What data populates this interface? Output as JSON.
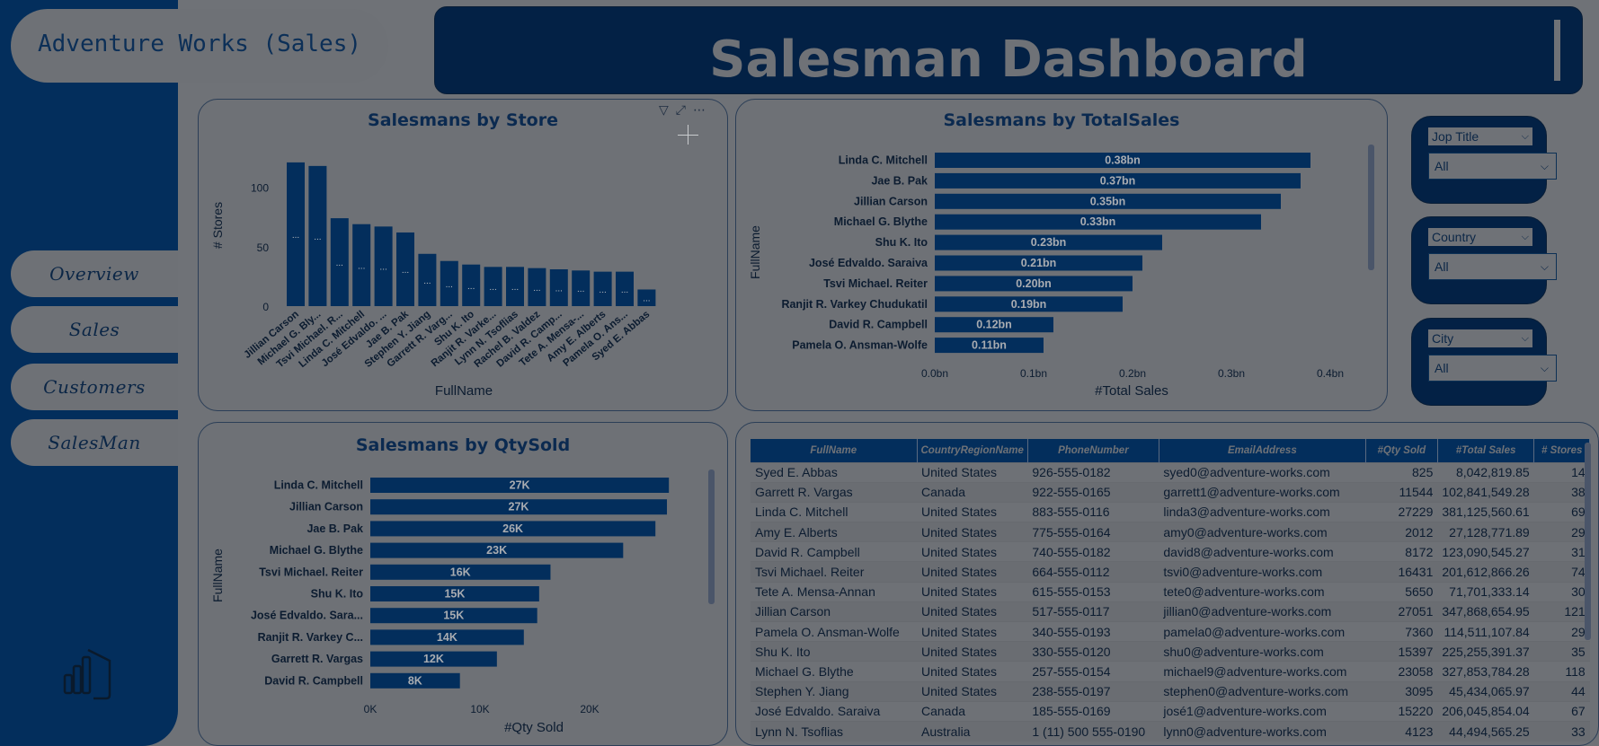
{
  "app_title": "Adventure Works (Sales)",
  "header_title": "Salesman Dashboard",
  "nav": [
    "Overview",
    "Sales",
    "Customers",
    "SalesMan"
  ],
  "colors": {
    "nav_bg": "#032e5c",
    "bar": "#032e5c",
    "card_bg": "#6e7176"
  },
  "slicers": [
    {
      "label": "Jop Title",
      "value": "All"
    },
    {
      "label": "Country",
      "value": "All"
    },
    {
      "label": "City",
      "value": "All"
    }
  ],
  "visual_icons": [
    "filter-icon",
    "focus-mode-icon",
    "more-options-icon"
  ],
  "chart_data": [
    {
      "type": "bar",
      "title": "Salesmans by Store",
      "xlabel": "FullName",
      "ylabel": "# Stores",
      "ylim": [
        0,
        130
      ],
      "y_ticks": [
        "0",
        "50",
        "100"
      ],
      "categories": [
        "Jillian Carson",
        "Michael G. Bly...",
        "Tsvi Michael. R...",
        "Linda C. Mitchell",
        "José Edvaldo. ...",
        "Jae B. Pak",
        "Stephen Y. Jiang",
        "Garrett R. Varg...",
        "Shu K. Ito",
        "Ranjit R. Varke...",
        "Lynn N. Tsoflias",
        "Rachel B. Valdez",
        "David R. Camp...",
        "Tete A. Mensa-...",
        "Amy E. Alberts",
        "Pamela O. Ans...",
        "Syed E. Abbas"
      ],
      "values": [
        121,
        118,
        74,
        69,
        67,
        62,
        44,
        38,
        35,
        33,
        33,
        32,
        31,
        30,
        29,
        29,
        14
      ],
      "bar_label": "..."
    },
    {
      "type": "bar",
      "orientation": "horizontal",
      "title": "Salesmans by TotalSales",
      "xlabel": "#Total Sales",
      "ylabel": "FullName",
      "xlim": [
        0,
        0.4
      ],
      "x_ticks": [
        "0.0bn",
        "0.1bn",
        "0.2bn",
        "0.3bn",
        "0.4bn"
      ],
      "categories": [
        "Linda C. Mitchell",
        "Jae B. Pak",
        "Jillian Carson",
        "Michael G. Blythe",
        "Shu K. Ito",
        "José Edvaldo. Saraiva",
        "Tsvi Michael. Reiter",
        "Ranjit R. Varkey Chudukatil",
        "David R. Campbell",
        "Pamela O. Ansman-Wolfe"
      ],
      "values": [
        0.38,
        0.37,
        0.35,
        0.33,
        0.23,
        0.21,
        0.2,
        0.19,
        0.12,
        0.11
      ],
      "labels": [
        "0.38bn",
        "0.37bn",
        "0.35bn",
        "0.33bn",
        "0.23bn",
        "0.21bn",
        "0.20bn",
        "0.19bn",
        "0.12bn",
        "0.11bn"
      ]
    },
    {
      "type": "bar",
      "orientation": "horizontal",
      "title": "Salesmans by QtySold",
      "xlabel": "#Qty Sold",
      "ylabel": "FullName",
      "xlim": [
        0,
        30000
      ],
      "x_ticks": [
        "0K",
        "10K",
        "20K"
      ],
      "categories": [
        "Linda C. Mitchell",
        "Jillian Carson",
        "Jae B. Pak",
        "Michael G. Blythe",
        "Tsvi Michael. Reiter",
        "Shu K. Ito",
        "José Edvaldo. Sara...",
        "Ranjit R. Varkey C...",
        "Garrett R. Vargas",
        "David R. Campbell"
      ],
      "values": [
        27229,
        27051,
        26000,
        23058,
        16431,
        15397,
        15220,
        14000,
        11544,
        8172
      ],
      "labels": [
        "27K",
        "27K",
        "26K",
        "23K",
        "16K",
        "15K",
        "15K",
        "14K",
        "12K",
        "8K"
      ]
    }
  ],
  "table": {
    "columns": [
      "FullName",
      "CountryRegionName",
      "PhoneNumber",
      "EmailAddress",
      "#Qty Sold",
      "#Total Sales",
      "# Stores"
    ],
    "rows": [
      [
        "Syed E. Abbas",
        "United States",
        "926-555-0182",
        "syed0@adventure-works.com",
        "825",
        "8,042,819.85",
        "14"
      ],
      [
        "Garrett R. Vargas",
        "Canada",
        "922-555-0165",
        "garrett1@adventure-works.com",
        "11544",
        "102,841,549.28",
        "38"
      ],
      [
        "Linda C. Mitchell",
        "United States",
        "883-555-0116",
        "linda3@adventure-works.com",
        "27229",
        "381,125,560.61",
        "69"
      ],
      [
        "Amy E. Alberts",
        "United States",
        "775-555-0164",
        "amy0@adventure-works.com",
        "2012",
        "27,128,771.89",
        "29"
      ],
      [
        "David R. Campbell",
        "United States",
        "740-555-0182",
        "david8@adventure-works.com",
        "8172",
        "123,090,545.27",
        "31"
      ],
      [
        "Tsvi Michael. Reiter",
        "United States",
        "664-555-0112",
        "tsvi0@adventure-works.com",
        "16431",
        "201,612,866.26",
        "74"
      ],
      [
        "Tete A. Mensa-Annan",
        "United States",
        "615-555-0153",
        "tete0@adventure-works.com",
        "5650",
        "71,701,333.14",
        "30"
      ],
      [
        "Jillian Carson",
        "United States",
        "517-555-0117",
        "jillian0@adventure-works.com",
        "27051",
        "347,868,654.95",
        "121"
      ],
      [
        "Pamela O. Ansman-Wolfe",
        "United States",
        "340-555-0193",
        "pamela0@adventure-works.com",
        "7360",
        "114,511,107.84",
        "29"
      ],
      [
        "Shu K. Ito",
        "United States",
        "330-555-0120",
        "shu0@adventure-works.com",
        "15397",
        "225,255,391.37",
        "35"
      ],
      [
        "Michael G. Blythe",
        "United States",
        "257-555-0154",
        "michael9@adventure-works.com",
        "23058",
        "327,853,784.28",
        "118"
      ],
      [
        "Stephen Y. Jiang",
        "United States",
        "238-555-0197",
        "stephen0@adventure-works.com",
        "3095",
        "45,434,065.97",
        "44"
      ],
      [
        "José Edvaldo. Saraiva",
        "Canada",
        "185-555-0169",
        "josé1@adventure-works.com",
        "15220",
        "206,045,854.04",
        "67"
      ],
      [
        "Lynn N. Tsoflias",
        "Australia",
        "1 (11) 500 555-0190",
        "lynn0@adventure-works.com",
        "4123",
        "44,494,565.25",
        "33"
      ]
    ]
  }
}
